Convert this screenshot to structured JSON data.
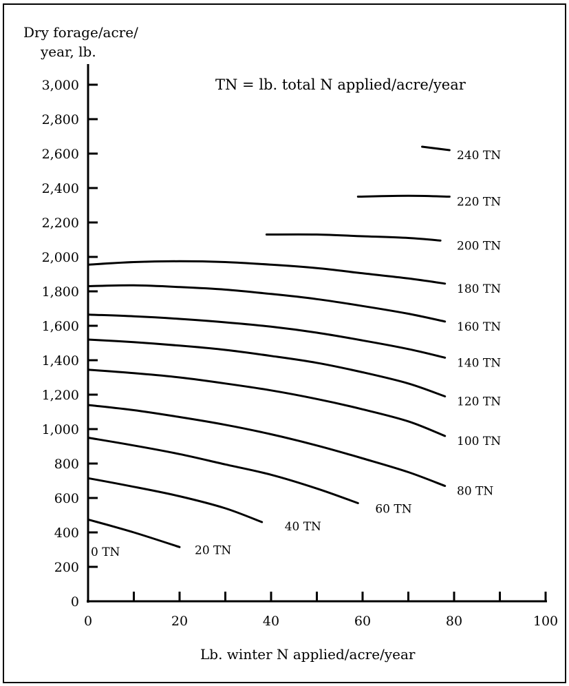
{
  "chart_data": {
    "type": "line",
    "title": "",
    "ylabel_line1": "Dry forage/acre/",
    "ylabel_line2": "year, lb.",
    "xlabel": "Lb. winter N applied/acre/year",
    "annotation": "TN = lb. total N applied/acre/year",
    "xlim": [
      0,
      100
    ],
    "ylim": [
      0,
      3000
    ],
    "x_ticks": [
      0,
      20,
      40,
      60,
      80,
      100
    ],
    "x_tick_labels": [
      "0",
      "20",
      "40",
      "60",
      "80",
      "100"
    ],
    "x_minor_ticks": [
      10,
      30,
      50,
      70,
      90
    ],
    "y_ticks": [
      0,
      200,
      400,
      600,
      800,
      1000,
      1200,
      1400,
      1600,
      1800,
      2000,
      2200,
      2400,
      2600,
      2800,
      3000
    ],
    "y_tick_labels": [
      "0",
      "200",
      "400",
      "600",
      "800",
      "1,000",
      "1,200",
      "1,400",
      "1,600",
      "1,800",
      "2,000",
      "2,200",
      "2,400",
      "2,600",
      "2,800",
      "3,000"
    ],
    "grid": false,
    "series": [
      {
        "name": "0 TN",
        "points": [
          [
            0,
            0
          ],
          [
            0,
            480
          ]
        ]
      },
      {
        "name": "20 TN",
        "points": [
          [
            0,
            475
          ],
          [
            10,
            400
          ],
          [
            20,
            315
          ]
        ]
      },
      {
        "name": "40 TN",
        "points": [
          [
            0,
            715
          ],
          [
            10,
            665
          ],
          [
            20,
            610
          ],
          [
            30,
            540
          ],
          [
            38,
            460
          ]
        ]
      },
      {
        "name": "60 TN",
        "points": [
          [
            0,
            950
          ],
          [
            10,
            905
          ],
          [
            20,
            855
          ],
          [
            30,
            795
          ],
          [
            40,
            735
          ],
          [
            50,
            655
          ],
          [
            59,
            570
          ]
        ]
      },
      {
        "name": "80 TN",
        "points": [
          [
            0,
            1140
          ],
          [
            10,
            1110
          ],
          [
            20,
            1070
          ],
          [
            30,
            1025
          ],
          [
            40,
            970
          ],
          [
            50,
            905
          ],
          [
            60,
            830
          ],
          [
            70,
            750
          ],
          [
            78,
            670
          ]
        ]
      },
      {
        "name": "100 TN",
        "points": [
          [
            0,
            1345
          ],
          [
            10,
            1325
          ],
          [
            20,
            1300
          ],
          [
            30,
            1265
          ],
          [
            40,
            1225
          ],
          [
            50,
            1175
          ],
          [
            60,
            1115
          ],
          [
            70,
            1045
          ],
          [
            78,
            960
          ]
        ]
      },
      {
        "name": "120 TN",
        "points": [
          [
            0,
            1520
          ],
          [
            10,
            1505
          ],
          [
            20,
            1485
          ],
          [
            30,
            1460
          ],
          [
            40,
            1425
          ],
          [
            50,
            1385
          ],
          [
            60,
            1330
          ],
          [
            70,
            1265
          ],
          [
            78,
            1190
          ]
        ]
      },
      {
        "name": "140 TN",
        "points": [
          [
            0,
            1665
          ],
          [
            10,
            1655
          ],
          [
            20,
            1640
          ],
          [
            30,
            1620
          ],
          [
            40,
            1595
          ],
          [
            50,
            1560
          ],
          [
            60,
            1515
          ],
          [
            70,
            1465
          ],
          [
            78,
            1415
          ]
        ]
      },
      {
        "name": "160 TN",
        "points": [
          [
            0,
            1830
          ],
          [
            10,
            1835
          ],
          [
            20,
            1825
          ],
          [
            30,
            1810
          ],
          [
            40,
            1785
          ],
          [
            50,
            1755
          ],
          [
            60,
            1715
          ],
          [
            70,
            1670
          ],
          [
            78,
            1625
          ]
        ]
      },
      {
        "name": "180 TN",
        "points": [
          [
            0,
            1955
          ],
          [
            10,
            1970
          ],
          [
            20,
            1975
          ],
          [
            30,
            1970
          ],
          [
            40,
            1955
          ],
          [
            50,
            1935
          ],
          [
            60,
            1905
          ],
          [
            70,
            1875
          ],
          [
            78,
            1845
          ]
        ]
      },
      {
        "name": "200 TN",
        "points": [
          [
            39,
            2130
          ],
          [
            50,
            2130
          ],
          [
            60,
            2120
          ],
          [
            70,
            2110
          ],
          [
            77,
            2095
          ]
        ]
      },
      {
        "name": "220 TN",
        "points": [
          [
            59,
            2350
          ],
          [
            70,
            2355
          ],
          [
            79,
            2350
          ]
        ]
      },
      {
        "name": "240 TN",
        "points": [
          [
            73,
            2640
          ],
          [
            79,
            2620
          ]
        ]
      }
    ]
  }
}
